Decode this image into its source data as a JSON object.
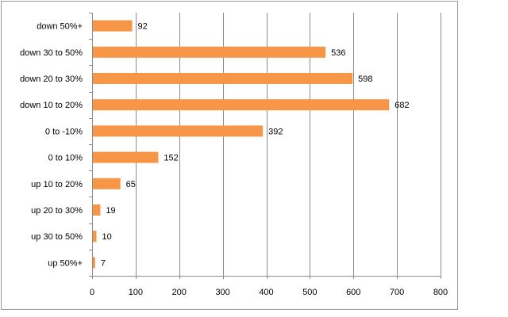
{
  "chart_data": {
    "type": "bar",
    "orientation": "horizontal",
    "title": "",
    "xlabel": "",
    "ylabel": "",
    "categories": [
      "down 50%+",
      "down 30 to 50%",
      "down 20 to 30%",
      "down 10 to 20%",
      "0 to -10%",
      "0 to 10%",
      "up 10 to 20%",
      "up 20 to 30%",
      "up 30 to 50%",
      "up 50%+"
    ],
    "values": [
      92,
      536,
      598,
      682,
      392,
      152,
      65,
      19,
      10,
      7
    ],
    "xlim": [
      0,
      800
    ],
    "xticks": [
      0,
      100,
      200,
      300,
      400,
      500,
      600,
      700,
      800
    ],
    "grid": "vertical",
    "legend": "none",
    "bar_color": "#F79646"
  }
}
